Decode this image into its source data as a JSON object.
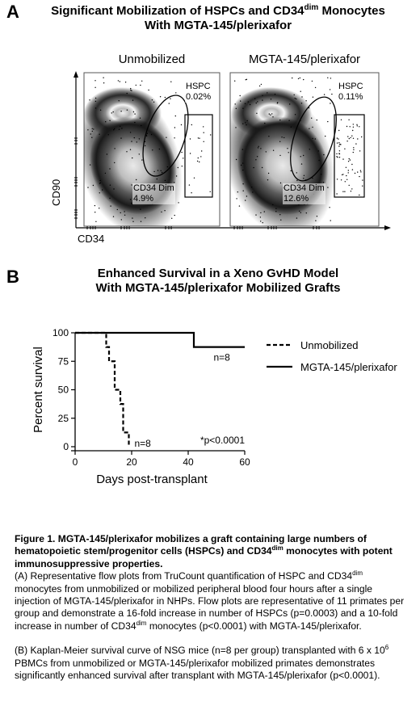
{
  "panel_a": {
    "letter": "A",
    "title_line1_pre": "Significant Mobilization of HSPCs and CD34",
    "title_line1_sup": "dim",
    "title_line1_post": " Monocytes",
    "title_line2": "With MGTA-145/plerixafor",
    "plots": [
      {
        "label": "Unmobilized",
        "hspc_label": "HSPC",
        "hspc_value": "0.02%",
        "dim_label": "CD34 Dim",
        "dim_value": "4.9%"
      },
      {
        "label": "MGTA-145/plerixafor",
        "hspc_label": "HSPC",
        "hspc_value": "0.11%",
        "dim_label": "CD34 Dim",
        "dim_value": "12.6%"
      }
    ],
    "y_axis_label": "CD90",
    "x_axis_label": "CD34"
  },
  "panel_b": {
    "letter": "B",
    "title_line1": "Enhanced Survival in a Xeno GvHD Model",
    "title_line2": "With MGTA-145/plerixafor Mobilized Grafts"
  },
  "chart_data": {
    "type": "line",
    "step": true,
    "title": "",
    "xlabel": "Days post-transplant",
    "ylabel": "Percent survival",
    "xlim": [
      0,
      60
    ],
    "ylim": [
      0,
      100
    ],
    "x_ticks": [
      0,
      20,
      40,
      60
    ],
    "y_ticks": [
      0,
      25,
      50,
      75,
      100
    ],
    "series": [
      {
        "name": "Unmobilized",
        "style": "dashed",
        "n_label": "n=8",
        "x": [
          0,
          11,
          12,
          14,
          16,
          17,
          19
        ],
        "y": [
          100,
          87.5,
          75,
          50,
          37.5,
          12.5,
          0
        ]
      },
      {
        "name": "MGTA-145/plerixafor",
        "style": "solid",
        "n_label": "n=8",
        "x": [
          0,
          42,
          60
        ],
        "y": [
          100,
          87.5,
          87.5
        ]
      }
    ],
    "annotation": "*p<0.0001",
    "legend_position": "right"
  },
  "caption": {
    "heading_parts": [
      "Figure 1. MGTA-145/plerixafor mobilizes a graft containing large numbers of hematopoietic stem/progenitor cells (HSPCs) and CD34",
      "dim",
      " monocytes with potent immunosuppressive properties."
    ],
    "para_a_parts": [
      "(A) Representative flow plots from TruCount quantification of HSPC and CD34",
      "dim",
      " monocytes from unmobilized or mobilized peripheral blood four hours after a single injection of MGTA-145/plerixafor in NHPs. Flow plots are representative of 11 primates per group and demonstrate a 16-fold increase in number of HSPCs (p=0.0003) and a 10-fold increase in number of CD34",
      "dim",
      " monocytes (p<0.0001) with MGTA-145/plerixafor."
    ],
    "para_b_parts": [
      "(B) Kaplan-Meier survival curve of NSG mice (n=8 per group) transplanted with 6 x 10",
      "6",
      " PBMCs from unmobilized or MGTA-145/plerixafor mobilized primates demonstrates significantly enhanced survival after transplant with MGTA-145/plerixafor (p<0.0001)."
    ]
  }
}
